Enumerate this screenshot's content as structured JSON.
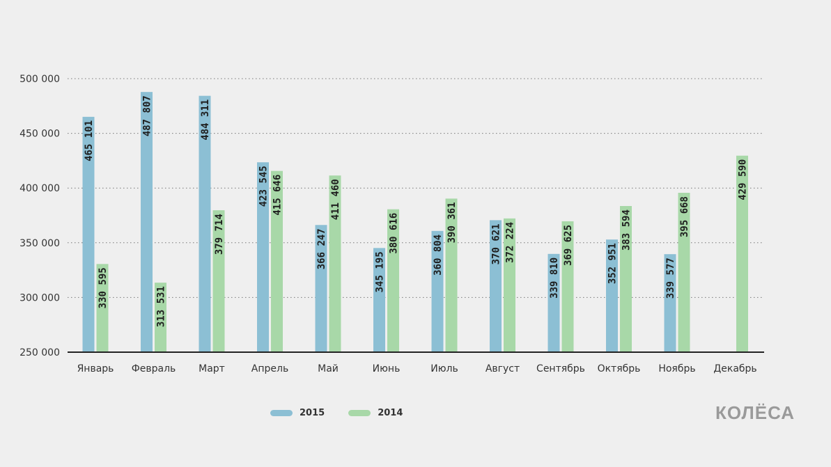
{
  "chart_data": {
    "type": "bar",
    "categories": [
      "Январь",
      "Февраль",
      "Март",
      "Апрель",
      "Май",
      "Июнь",
      "Июль",
      "Август",
      "Сентябрь",
      "Октябрь",
      "Ноябрь",
      "Декабрь"
    ],
    "series": [
      {
        "name": "2015",
        "color": "#8cbfd4",
        "values": [
          465101,
          487807,
          484311,
          423545,
          366247,
          345195,
          360804,
          370621,
          339810,
          352951,
          339577,
          null
        ],
        "labels": [
          "465 101",
          "487 807",
          "484 311",
          "423 545",
          "366 247",
          "345 195",
          "360 804",
          "370 621",
          "339 810",
          "352 951",
          "339 577",
          ""
        ]
      },
      {
        "name": "2014",
        "color": "#a8d8a8",
        "values": [
          330595,
          313531,
          379714,
          415646,
          411460,
          380616,
          390361,
          372224,
          369625,
          383594,
          395668,
          429590
        ],
        "labels": [
          "330 595",
          "313 531",
          "379 714",
          "415 646",
          "411 460",
          "380 616",
          "390 361",
          "372 224",
          "369 625",
          "383 594",
          "395 668",
          "429 590"
        ]
      }
    ],
    "ylim": [
      250000,
      500000
    ],
    "yticks": [
      250000,
      300000,
      350000,
      400000,
      450000,
      500000
    ],
    "ytick_labels": [
      "250 000",
      "300 000",
      "350 000",
      "400 000",
      "450 000",
      "500 000"
    ],
    "grid": "horizontal-dotted",
    "legend": "bottom-center"
  },
  "legend": {
    "items": [
      {
        "label": "2015",
        "color": "#8cbfd4"
      },
      {
        "label": "2014",
        "color": "#a8d8a8"
      }
    ]
  },
  "brand": {
    "logo_text": "КОЛЁСА"
  }
}
